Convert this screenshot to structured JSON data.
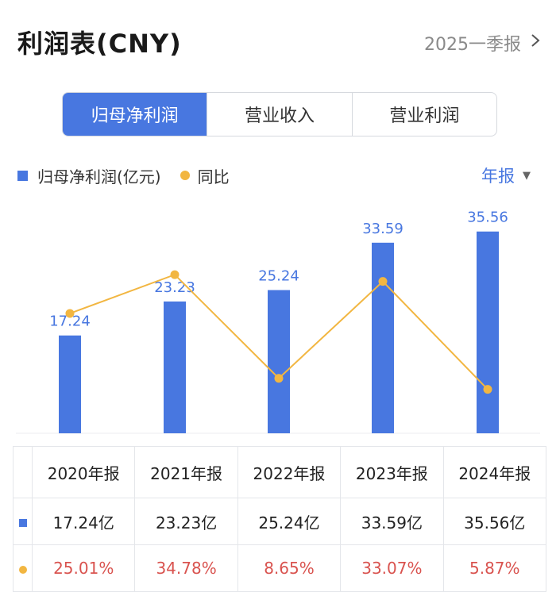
{
  "header": {
    "title": "利润表(CNY)",
    "period_label": "2025一季报",
    "chevron_icon": "chevron-right-icon"
  },
  "tabs": [
    {
      "label": "归母净利润",
      "active": true
    },
    {
      "label": "营业收入",
      "active": false
    },
    {
      "label": "营业利润",
      "active": false
    }
  ],
  "legend": {
    "bar_label": "归母净利润(亿元)",
    "line_label": "同比",
    "period_select": "年报",
    "caret_icon": "caret-down-icon"
  },
  "colors": {
    "bar": "#4877e0",
    "line": "#f2b641",
    "negative_text": "#d9534f",
    "tab_active": "#4877e0"
  },
  "chart_data": {
    "type": "bar",
    "categories": [
      "2020年报",
      "2021年报",
      "2022年报",
      "2023年报",
      "2024年报"
    ],
    "series": [
      {
        "name": "归母净利润(亿元)",
        "type": "bar",
        "values": [
          17.24,
          23.23,
          25.24,
          33.59,
          35.56
        ]
      },
      {
        "name": "同比",
        "type": "line",
        "values": [
          25.01,
          34.78,
          8.65,
          33.07,
          5.87
        ],
        "unit": "%"
      }
    ],
    "bar_labels": [
      "17.24",
      "23.23",
      "25.24",
      "33.59",
      "35.56"
    ],
    "legend_position": "top-left",
    "grid": false
  },
  "table": {
    "headers": [
      "2020年报",
      "2021年报",
      "2022年报",
      "2023年报",
      "2024年报"
    ],
    "profit_row": [
      "17.24亿",
      "23.23亿",
      "25.24亿",
      "33.59亿",
      "35.56亿"
    ],
    "yoy_row": [
      "25.01%",
      "34.78%",
      "8.65%",
      "33.07%",
      "5.87%"
    ]
  }
}
